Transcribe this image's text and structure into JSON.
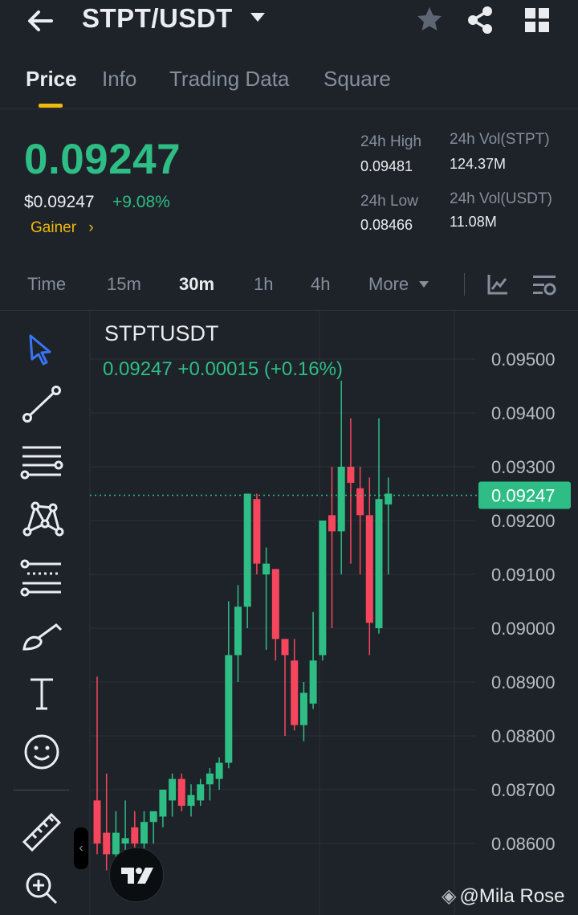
{
  "header": {
    "back": "back-arrow-icon",
    "pair": "STPT/USDT",
    "icons": [
      "star-icon",
      "share-icon",
      "grid-icon"
    ]
  },
  "tabs": [
    {
      "label": "Price",
      "active": true
    },
    {
      "label": "Info",
      "active": false
    },
    {
      "label": "Trading Data",
      "active": false
    },
    {
      "label": "Square",
      "active": false
    }
  ],
  "ticker": {
    "last_price": "0.09247",
    "usd_price": "$0.09247",
    "change": "+9.08%",
    "tag": "Gainer",
    "tag_chevron": "›",
    "high_label": "24h High",
    "high": "0.09481",
    "low_label": "24h Low",
    "low": "0.08466",
    "vol_base_label": "24h Vol(STPT)",
    "vol_base": "124.37M",
    "vol_quote_label": "24h Vol(USDT)",
    "vol_quote": "11.08M"
  },
  "intervals": {
    "items": [
      {
        "label": "Time",
        "active": false
      },
      {
        "label": "15m",
        "active": false
      },
      {
        "label": "30m",
        "active": true
      },
      {
        "label": "1h",
        "active": false
      },
      {
        "label": "4h",
        "active": false
      },
      {
        "label": "More",
        "active": false
      }
    ],
    "icons": [
      "indicator-icon",
      "chart-settings-icon"
    ]
  },
  "chart": {
    "symbol": "STPTUSDT",
    "ohlc": "0.09247  +0.00015 (+0.16%)",
    "current_price_label": "0.09247",
    "current_price": 0.09247,
    "y_ticks": [
      "0.09500",
      "0.09400",
      "0.09300",
      "0.09200",
      "0.09100",
      "0.09000",
      "0.08900",
      "0.08800",
      "0.08700",
      "0.08600"
    ],
    "colors": {
      "up": "#2ebd85",
      "down": "#f6465d",
      "bg": "#1e2329",
      "grid": "#2b3139"
    },
    "tools": [
      "cursor-icon",
      "trend-line-icon",
      "horizontal-lines-icon",
      "pattern-icon",
      "fib-icon",
      "brush-icon",
      "text-icon",
      "emoji-icon",
      "ruler-icon",
      "zoom-in-icon"
    ],
    "watermark": "@Mila Rose"
  },
  "chart_data": {
    "type": "candlestick",
    "title": "STPTUSDT",
    "interval": "30m",
    "ylim": [
      0.0855,
      0.0955
    ],
    "candles": [
      {
        "o": 0.0868,
        "h": 0.0891,
        "l": 0.0858,
        "c": 0.086
      },
      {
        "o": 0.0862,
        "h": 0.0873,
        "l": 0.0855,
        "c": 0.0858
      },
      {
        "o": 0.0858,
        "h": 0.0866,
        "l": 0.0855,
        "c": 0.0862
      },
      {
        "o": 0.086,
        "h": 0.0868,
        "l": 0.0856,
        "c": 0.0861
      },
      {
        "o": 0.0863,
        "h": 0.0866,
        "l": 0.0858,
        "c": 0.086
      },
      {
        "o": 0.086,
        "h": 0.0866,
        "l": 0.0858,
        "c": 0.0864
      },
      {
        "o": 0.0864,
        "h": 0.0866,
        "l": 0.086,
        "c": 0.0866
      },
      {
        "o": 0.0865,
        "h": 0.087,
        "l": 0.0863,
        "c": 0.087
      },
      {
        "o": 0.0868,
        "h": 0.0873,
        "l": 0.0865,
        "c": 0.0872
      },
      {
        "o": 0.0872,
        "h": 0.0873,
        "l": 0.0866,
        "c": 0.0867
      },
      {
        "o": 0.0867,
        "h": 0.0871,
        "l": 0.0865,
        "c": 0.0869
      },
      {
        "o": 0.0868,
        "h": 0.0872,
        "l": 0.0867,
        "c": 0.0871
      },
      {
        "o": 0.0871,
        "h": 0.0874,
        "l": 0.0868,
        "c": 0.0873
      },
      {
        "o": 0.0872,
        "h": 0.0876,
        "l": 0.087,
        "c": 0.0875
      },
      {
        "o": 0.0875,
        "h": 0.0905,
        "l": 0.0874,
        "c": 0.0895
      },
      {
        "o": 0.0895,
        "h": 0.0908,
        "l": 0.089,
        "c": 0.0904
      },
      {
        "o": 0.0904,
        "h": 0.0925,
        "l": 0.09,
        "c": 0.0925
      },
      {
        "o": 0.0924,
        "h": 0.0925,
        "l": 0.091,
        "c": 0.0912
      },
      {
        "o": 0.091,
        "h": 0.0915,
        "l": 0.0896,
        "c": 0.0912
      },
      {
        "o": 0.0911,
        "h": 0.0911,
        "l": 0.0894,
        "c": 0.0898
      },
      {
        "o": 0.0898,
        "h": 0.0898,
        "l": 0.088,
        "c": 0.0895
      },
      {
        "o": 0.0894,
        "h": 0.0898,
        "l": 0.0881,
        "c": 0.0882
      },
      {
        "o": 0.0882,
        "h": 0.089,
        "l": 0.0879,
        "c": 0.0888
      },
      {
        "o": 0.0886,
        "h": 0.0903,
        "l": 0.0885,
        "c": 0.0894
      },
      {
        "o": 0.0895,
        "h": 0.092,
        "l": 0.0894,
        "c": 0.092
      },
      {
        "o": 0.0921,
        "h": 0.093,
        "l": 0.09,
        "c": 0.0918
      },
      {
        "o": 0.0918,
        "h": 0.0946,
        "l": 0.091,
        "c": 0.093
      },
      {
        "o": 0.093,
        "h": 0.0939,
        "l": 0.0912,
        "c": 0.0927
      },
      {
        "o": 0.0926,
        "h": 0.093,
        "l": 0.091,
        "c": 0.0921
      },
      {
        "o": 0.0921,
        "h": 0.0928,
        "l": 0.0895,
        "c": 0.0901
      },
      {
        "o": 0.09,
        "h": 0.0939,
        "l": 0.0899,
        "c": 0.0924
      },
      {
        "o": 0.0923,
        "h": 0.0928,
        "l": 0.091,
        "c": 0.0925
      }
    ]
  }
}
